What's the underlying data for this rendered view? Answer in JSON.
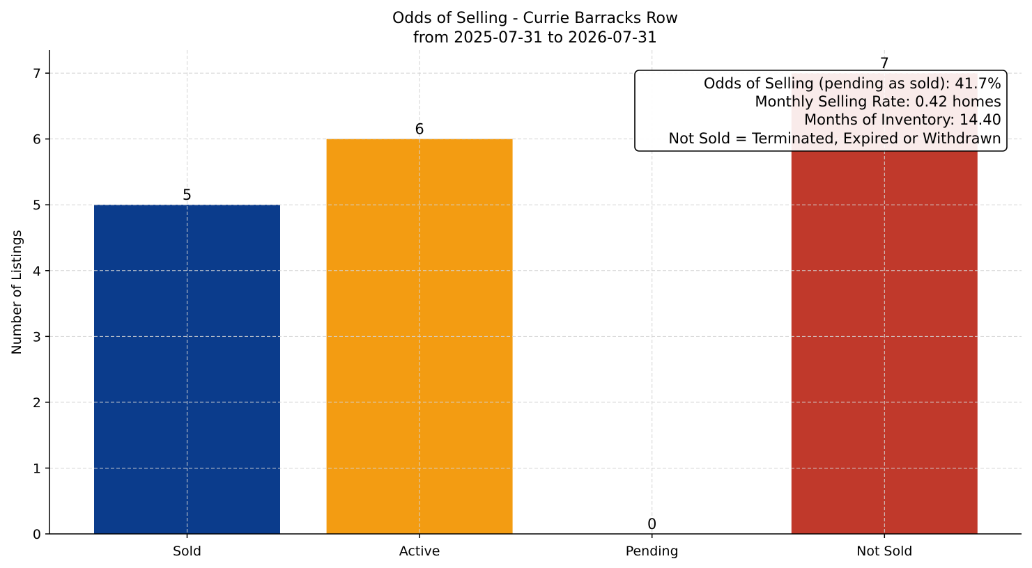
{
  "chart_data": {
    "type": "bar",
    "title": "Odds of Selling - Currie Barracks Row",
    "subtitle": "from 2025-07-31 to 2026-07-31",
    "xlabel": "",
    "ylabel": "Number of Listings",
    "categories": [
      "Sold",
      "Active",
      "Pending",
      "Not Sold"
    ],
    "values": [
      5,
      6,
      0,
      7
    ],
    "colors": [
      "#0b3c8c",
      "#f39c12",
      "#e67e22",
      "#c0392b"
    ],
    "ylim": [
      0,
      7.35
    ],
    "yticks": [
      "0",
      "1",
      "2",
      "3",
      "4",
      "5",
      "6",
      "7"
    ],
    "grid": true,
    "annotation": {
      "placement": "top-right",
      "lines": [
        "Odds of Selling (pending as sold): 41.7%",
        "Monthly Selling Rate: 0.42 homes",
        "Months of Inventory: 14.40",
        "Not Sold = Terminated, Expired or Withdrawn"
      ]
    }
  }
}
